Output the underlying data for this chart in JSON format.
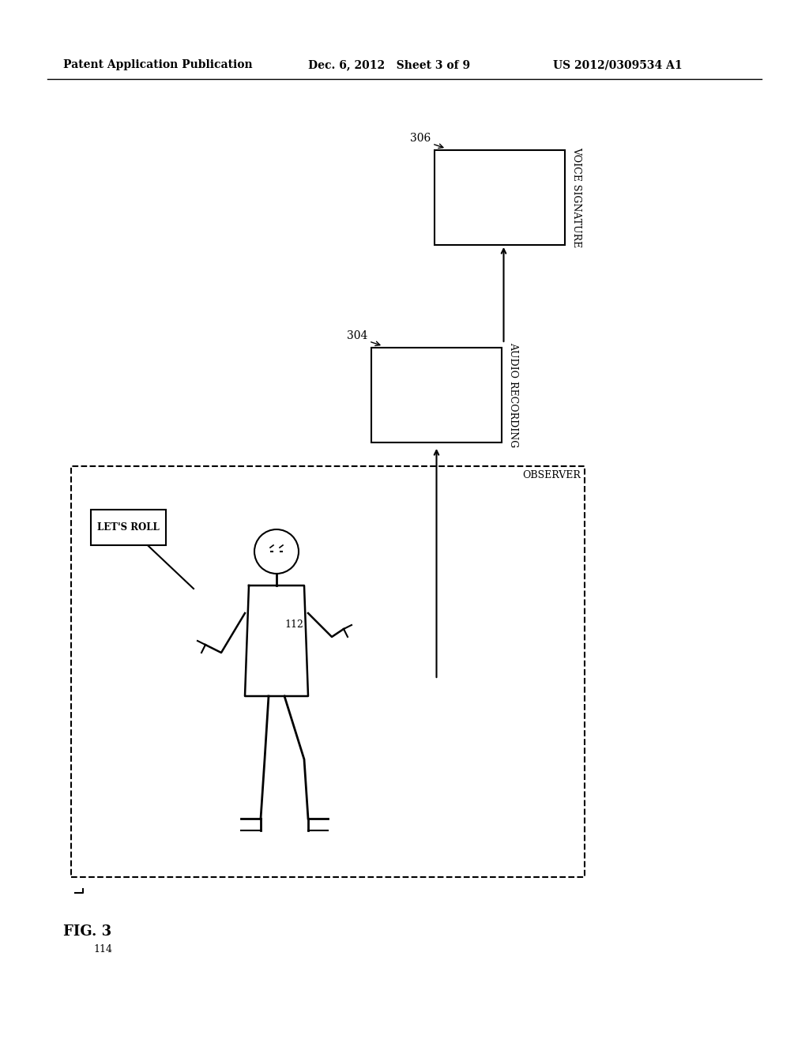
{
  "bg_color": "#ffffff",
  "header_left": "Patent Application Publication",
  "header_mid": "Dec. 6, 2012   Sheet 3 of 9",
  "header_right": "US 2012/0309534 A1",
  "fig_label": "FIG. 3",
  "fig_number": "114",
  "observer_label": "OBSERVER",
  "audio_label": "AUDIO RECORDING",
  "voice_label": "VOICE SIGNATURE",
  "label_304": "304",
  "label_306": "306",
  "label_112": "112",
  "lets_roll_text": "LET'S ROLL"
}
